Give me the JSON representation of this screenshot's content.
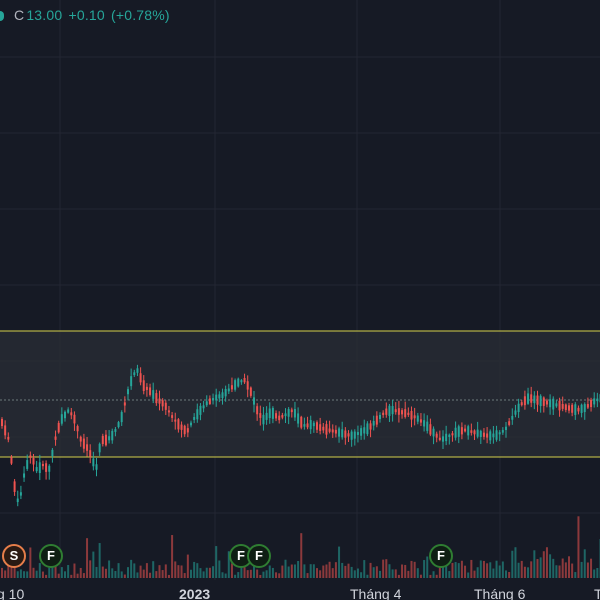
{
  "legend": {
    "close_label": "C",
    "close_value": "13.00",
    "change": "+0.10",
    "change_pct": "(+0.78%)"
  },
  "time_axis": [
    "g 10",
    "2023",
    "Tháng 4",
    "Tháng 6",
    "T"
  ],
  "event_markers": [
    "S",
    "F",
    "F",
    "F",
    "F"
  ],
  "colors": {
    "background": "#161a25",
    "up": "#26a69a",
    "down": "#ef5350",
    "range_box_border": "#d4d04a",
    "range_box_fill": "#2a2d36"
  },
  "chart_data": {
    "type": "candlestick",
    "title": "",
    "range_box": true,
    "last_close": 13.0,
    "change": 0.1,
    "change_pct": 0.78
  }
}
